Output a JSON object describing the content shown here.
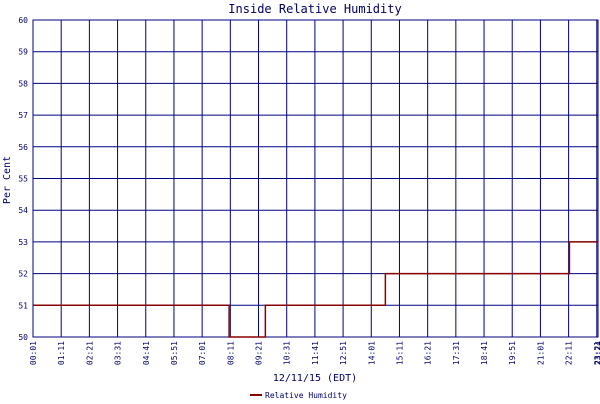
{
  "chart_data": {
    "type": "line",
    "title": "Inside Relative Humidity",
    "x_label": "12/11/15 (EDT)",
    "y_label": "Per Cent",
    "x": [
      "00:01",
      "08:08",
      "08:08",
      "09:38",
      "09:38",
      "14:36",
      "14:36",
      "22:13",
      "22:13",
      "23:24"
    ],
    "series": [
      {
        "name": "Relative Humidity",
        "color": "#8b0000",
        "values": [
          51,
          51,
          50,
          50,
          51,
          51,
          52,
          52,
          53,
          53
        ]
      }
    ],
    "xlim": [
      "00:01",
      "23:24"
    ],
    "xticks": [
      "00:01",
      "01:11",
      "02:21",
      "03:31",
      "04:41",
      "05:51",
      "07:01",
      "08:11",
      "09:21",
      "10:31",
      "11:41",
      "12:51",
      "14:01",
      "15:11",
      "16:21",
      "17:31",
      "18:41",
      "19:51",
      "21:01",
      "22:11",
      "23:21",
      "23:24"
    ],
    "ylim": [
      50,
      60
    ],
    "yticks": [
      50,
      51,
      52,
      53,
      54,
      55,
      56,
      57,
      58,
      59,
      60
    ],
    "grid": true,
    "grid_color": "#000080"
  }
}
